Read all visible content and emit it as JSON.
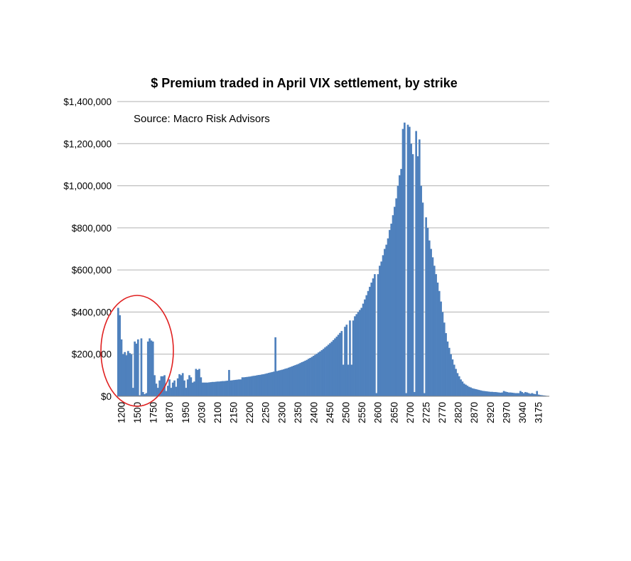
{
  "chart_data": {
    "type": "bar",
    "title": "$ Premium traded in April VIX settlement, by strike",
    "annotation": "Source: Macro Risk Advisors",
    "xlabel": "",
    "ylabel": "",
    "ylim": [
      0,
      1400000
    ],
    "yticks": [
      "$0",
      "$200,000",
      "$400,000",
      "$600,000",
      "$800,000",
      "$1,000,000",
      "$1,200,000",
      "$1,400,000"
    ],
    "xtick_labels": [
      "1200",
      "1500",
      "1750",
      "1870",
      "1950",
      "2030",
      "2100",
      "2150",
      "2200",
      "2250",
      "2300",
      "2350",
      "2400",
      "2450",
      "2500",
      "2550",
      "2600",
      "2650",
      "2700",
      "2725",
      "2770",
      "2820",
      "2870",
      "2920",
      "2970",
      "3040",
      "3175"
    ],
    "grid": true,
    "legend": "none",
    "bar_color": "#4f81bd",
    "highlight_color": "#e02020",
    "values": [
      420000,
      385000,
      270000,
      200000,
      210000,
      195000,
      215000,
      205000,
      200000,
      40000,
      260000,
      250000,
      270000,
      5000,
      275000,
      20000,
      10000,
      15000,
      260000,
      275000,
      265000,
      260000,
      100000,
      60000,
      40000,
      75000,
      95000,
      95000,
      100000,
      25000,
      50000,
      80000,
      40000,
      65000,
      75000,
      45000,
      85000,
      105000,
      100000,
      110000,
      75000,
      40000,
      80000,
      100000,
      90000,
      65000,
      70000,
      130000,
      125000,
      130000,
      90000,
      65000,
      65000,
      65000,
      65000,
      66000,
      67000,
      68000,
      68000,
      69000,
      70000,
      70000,
      71000,
      72000,
      72000,
      73000,
      74000,
      125000,
      75000,
      76000,
      77000,
      78000,
      79000,
      80000,
      80000,
      90000,
      90000,
      91000,
      92000,
      93000,
      94000,
      96000,
      97000,
      98000,
      100000,
      101000,
      102000,
      104000,
      105000,
      107000,
      109000,
      111000,
      113000,
      115000,
      117000,
      280000,
      120000,
      122000,
      124000,
      126000,
      128000,
      131000,
      133000,
      136000,
      139000,
      142000,
      145000,
      148000,
      151000,
      154000,
      158000,
      162000,
      165000,
      169000,
      173000,
      178000,
      182000,
      187000,
      192000,
      197000,
      202000,
      208000,
      213000,
      219000,
      225000,
      232000,
      238000,
      245000,
      252000,
      259000,
      267000,
      275000,
      283000,
      292000,
      301000,
      310000,
      150000,
      330000,
      340000,
      150000,
      360000,
      150000,
      360000,
      380000,
      390000,
      400000,
      410000,
      420000,
      440000,
      460000,
      480000,
      500000,
      520000,
      540000,
      560000,
      580000,
      15000,
      580000,
      620000,
      640000,
      670000,
      700000,
      720000,
      750000,
      790000,
      820000,
      860000,
      900000,
      940000,
      1000000,
      1050000,
      1080000,
      1270000,
      1300000,
      15000,
      1290000,
      1280000,
      1200000,
      1150000,
      20000,
      1260000,
      1140000,
      1220000,
      1000000,
      920000,
      15000,
      850000,
      800000,
      740000,
      700000,
      660000,
      620000,
      580000,
      540000,
      500000,
      450000,
      400000,
      350000,
      300000,
      260000,
      230000,
      200000,
      175000,
      150000,
      130000,
      110000,
      95000,
      80000,
      70000,
      60000,
      55000,
      50000,
      45000,
      42000,
      38000,
      36000,
      34000,
      32000,
      30000,
      28000,
      26000,
      25000,
      24000,
      23000,
      22000,
      21000,
      21000,
      20000,
      20000,
      19000,
      18000,
      17000,
      18000,
      25000,
      22000,
      20000,
      18000,
      18000,
      17000,
      16000,
      15000,
      15000,
      15000,
      25000,
      20000,
      15000,
      20000,
      18000,
      15000,
      12000,
      15000,
      12000,
      10000,
      25000,
      8000,
      6000,
      5000,
      4000,
      3000,
      2000,
      1000
    ]
  }
}
